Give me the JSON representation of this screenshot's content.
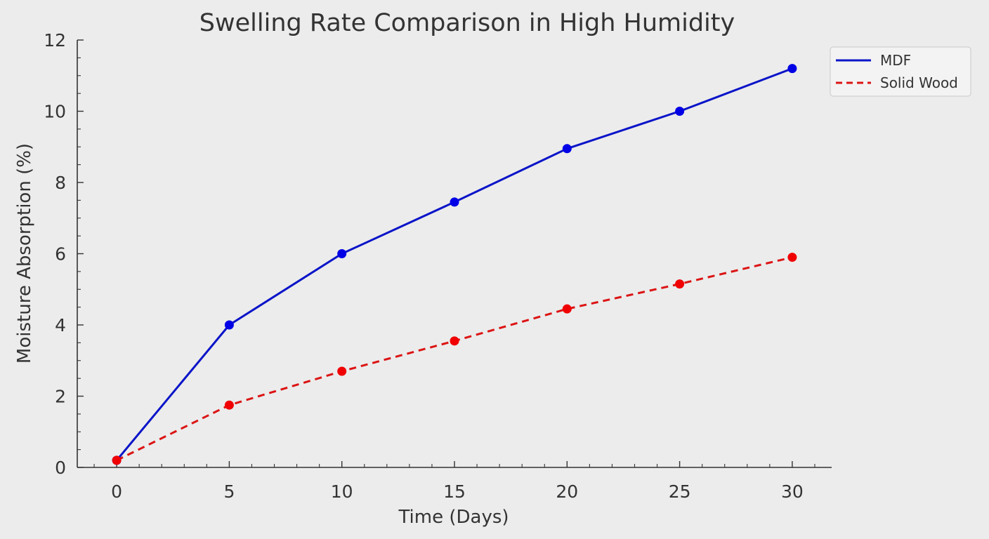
{
  "chart_data": {
    "type": "line",
    "title": "Swelling Rate Comparison in High Humidity",
    "xlabel": "Time (Days)",
    "ylabel": "Moisture Absorption (%)",
    "x": [
      0,
      5,
      10,
      15,
      20,
      25,
      30
    ],
    "x_ticks": [
      "0",
      "5",
      "10",
      "15",
      "20",
      "25",
      "30"
    ],
    "y_ticks": [
      "0",
      "2",
      "4",
      "6",
      "8",
      "10",
      "12"
    ],
    "xlim": [
      -1.75,
      31.75
    ],
    "ylim": [
      0,
      12
    ],
    "grid": false,
    "legend_position": "top-right",
    "series": [
      {
        "name": "MDF",
        "values": [
          0.2,
          4.0,
          6.0,
          7.45,
          8.95,
          10.0,
          11.2
        ],
        "color": "#0a14c8",
        "line_style": "solid",
        "marker_color": "#0000e6"
      },
      {
        "name": "Solid Wood",
        "values": [
          0.2,
          1.75,
          2.7,
          3.55,
          4.45,
          5.15,
          5.9
        ],
        "color": "#dc1414",
        "line_style": "dashed",
        "marker_color": "#f00000"
      }
    ]
  }
}
